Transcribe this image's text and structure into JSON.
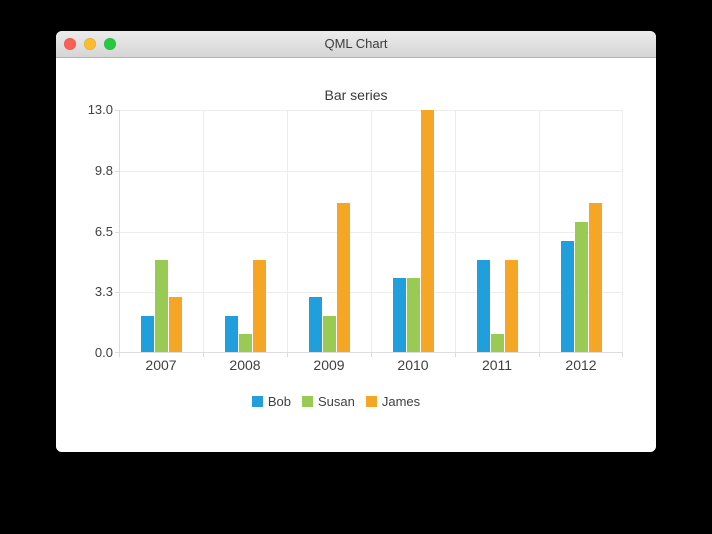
{
  "window": {
    "title": "QML Chart",
    "controls": {
      "close_color": "#fc5f56",
      "minimize_color": "#fdbc2e",
      "zoom_color": "#27c93f"
    }
  },
  "chart_data": {
    "type": "bar",
    "title": "Bar series",
    "categories": [
      "2007",
      "2008",
      "2009",
      "2010",
      "2011",
      "2012"
    ],
    "series": [
      {
        "name": "Bob",
        "color": "#219fdd",
        "values": [
          2,
          2,
          3,
          4,
          5,
          6
        ]
      },
      {
        "name": "Susan",
        "color": "#99ca53",
        "values": [
          5,
          1,
          2,
          4,
          1,
          7
        ]
      },
      {
        "name": "James",
        "color": "#f6a625",
        "values": [
          3,
          5,
          8,
          13,
          5,
          8
        ]
      }
    ],
    "y_ticks": [
      "0.0",
      "3.3",
      "6.5",
      "9.8",
      "13.0"
    ],
    "ylim": [
      0,
      13
    ],
    "xlabel": "",
    "ylabel": "",
    "grid": true,
    "legend_position": "bottom"
  }
}
